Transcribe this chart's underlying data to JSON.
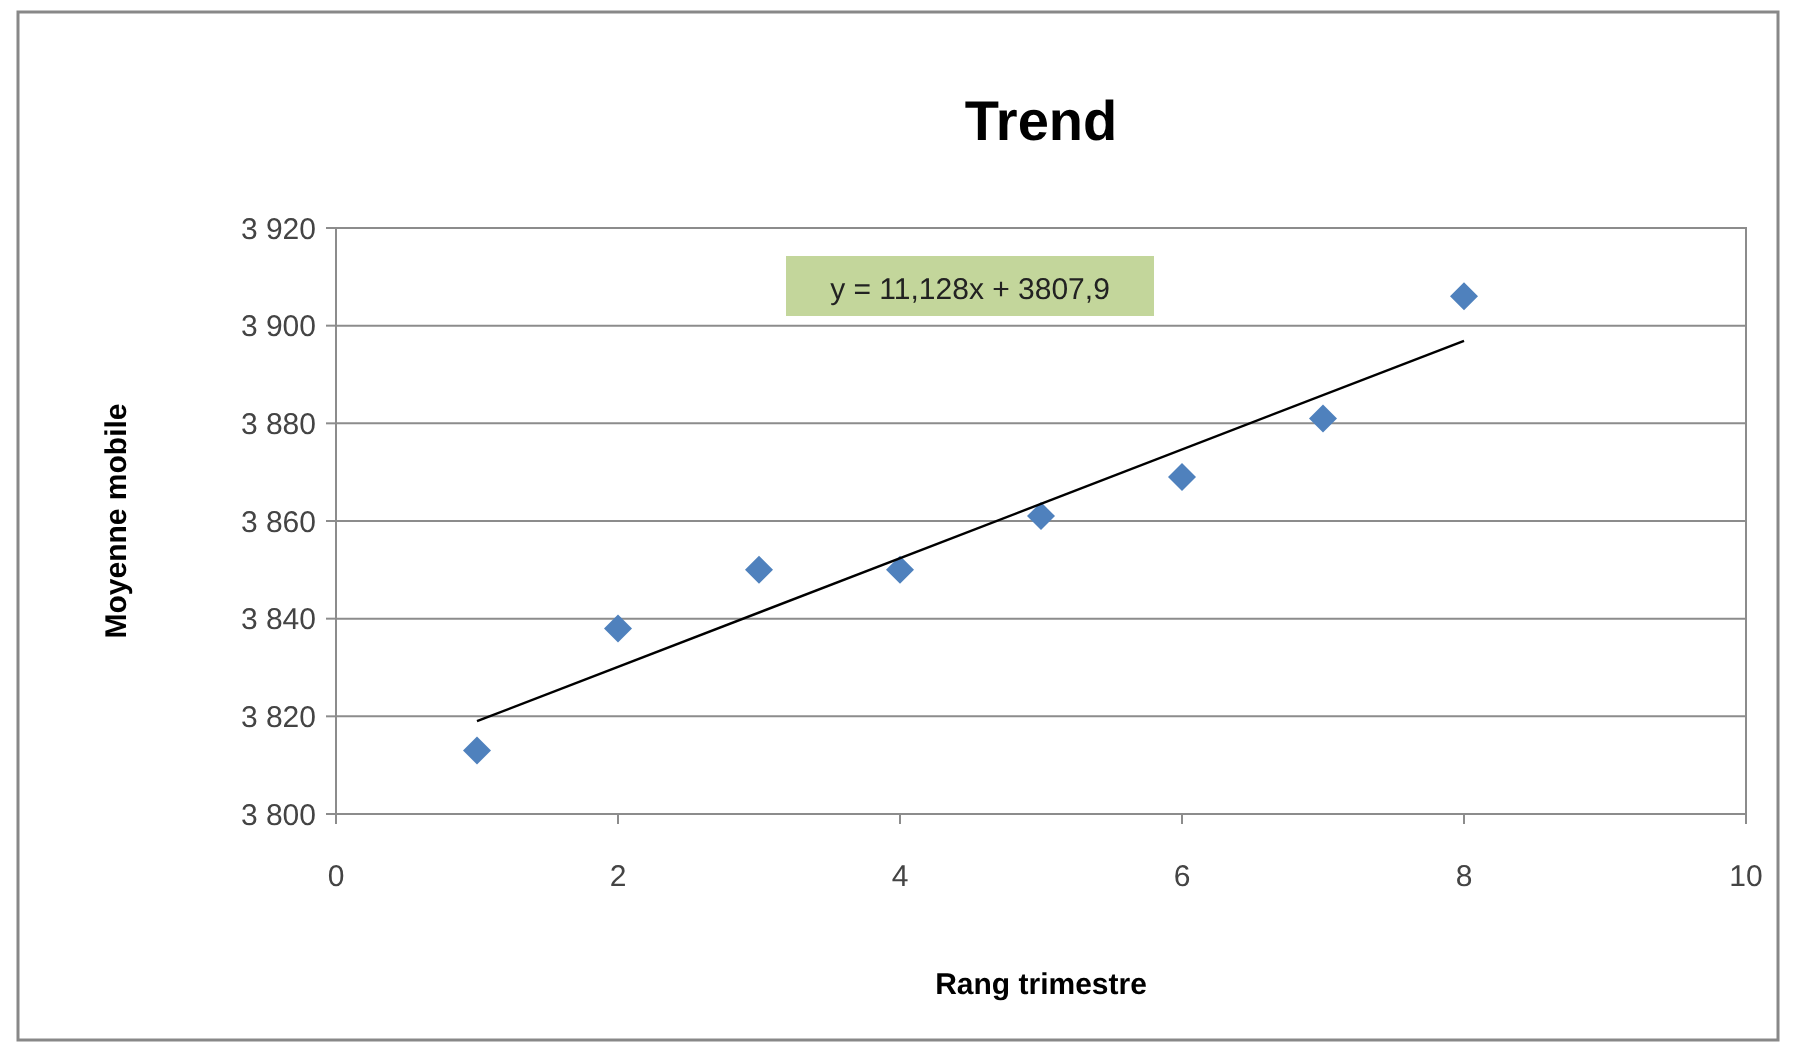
{
  "chart_data": {
    "type": "scatter",
    "title": "Trend",
    "xlabel": "Rang trimestre",
    "ylabel": "Moyenne mobile",
    "x": [
      1,
      2,
      3,
      4,
      5,
      6,
      7,
      8
    ],
    "series": [
      {
        "color": "#4f81bd",
        "marker": "diamond",
        "values": [
          3813,
          3838,
          3850,
          3850,
          3861,
          3869,
          3881,
          3906
        ]
      },
      {
        "type": "line",
        "color": "#000000",
        "marker": "none",
        "x": [
          1,
          8
        ],
        "values": [
          3819.0,
          3896.9
        ]
      }
    ],
    "annotations": [
      "y = 11,128x + 3807,9"
    ],
    "xlim": [
      0,
      10
    ],
    "xticks": [
      0,
      2,
      4,
      6,
      8,
      10
    ],
    "ylim": [
      3800,
      3920
    ],
    "yticks": [
      {
        "value": 3800,
        "label": "3 800"
      },
      {
        "value": 3820,
        "label": "3 820"
      },
      {
        "value": 3840,
        "label": "3 840"
      },
      {
        "value": 3860,
        "label": "3 860"
      },
      {
        "value": 3880,
        "label": "3 880"
      },
      {
        "value": 3900,
        "label": "3 900"
      },
      {
        "value": 3920,
        "label": "3 920"
      }
    ],
    "grid": "y"
  }
}
